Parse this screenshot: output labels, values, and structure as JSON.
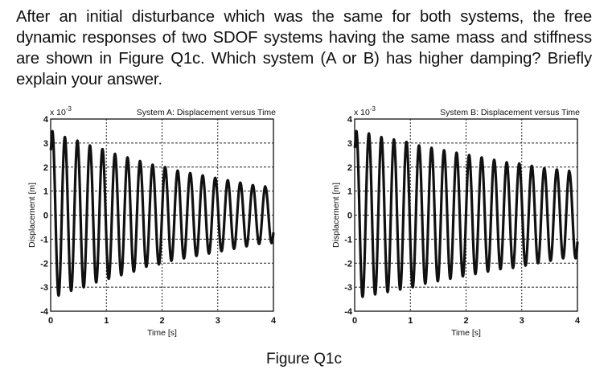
{
  "question": {
    "text": "After an initial disturbance which was the same for both systems, the free dynamic responses of two SDOF systems having the same mass and stiffness are shown in Figure Q1c. Which system (A or B) has higher damping? Briefly explain your answer."
  },
  "caption": "Figure Q1c",
  "chart_data": [
    {
      "type": "line",
      "id": "A",
      "title": "System A: Displacement versus Time",
      "xlabel": "Time [s]",
      "ylabel": "Displacement [m]",
      "y_scale_label": "x 10",
      "y_scale_exponent": "-3",
      "xlim": [
        0,
        4
      ],
      "ylim": [
        -4,
        4
      ],
      "xticks": [
        "0",
        "1",
        "2",
        "3",
        "4"
      ],
      "yticks": [
        "4",
        "3",
        "2",
        "1",
        "0",
        "-1",
        "-2",
        "-3",
        "-4"
      ],
      "grid": "dotted",
      "signal": {
        "initial_value": 2.7,
        "first_peak": 3.5,
        "final_peak": 1.2,
        "period_s": 0.225,
        "phase_s": 0.03
      },
      "peaks": [
        3.5,
        3.25,
        3.1,
        2.9,
        2.75,
        2.55,
        2.4,
        2.25,
        2.1,
        2.0,
        1.85,
        1.75,
        1.65,
        1.55,
        1.45,
        1.35,
        1.25,
        1.2
      ],
      "troughs": [
        -3.35,
        -3.15,
        -3.0,
        -2.8,
        -2.65,
        -2.5,
        -2.35,
        -2.15,
        -2.05,
        -1.9,
        -1.8,
        -1.7,
        -1.6,
        -1.5,
        -1.4,
        -1.3,
        -1.2
      ]
    },
    {
      "type": "line",
      "id": "B",
      "title": "System B: Displacement versus Time",
      "xlabel": "Time [s]",
      "ylabel": "Displacement [m]",
      "y_scale_label": "x 10",
      "y_scale_exponent": "-3",
      "xlim": [
        0,
        4
      ],
      "ylim": [
        -4,
        4
      ],
      "xticks": [
        "0",
        "1",
        "2",
        "3",
        "4"
      ],
      "yticks": [
        "4",
        "3",
        "2",
        "1",
        "0",
        "-1",
        "-2",
        "-3",
        "-4"
      ],
      "grid": "dotted",
      "signal": {
        "initial_value": 2.8,
        "first_peak": 3.5,
        "final_peak": 1.85,
        "period_s": 0.225,
        "phase_s": 0.03
      },
      "peaks": [
        3.5,
        3.4,
        3.25,
        3.15,
        3.05,
        2.9,
        2.8,
        2.7,
        2.6,
        2.5,
        2.4,
        2.3,
        2.2,
        2.15,
        2.05,
        1.95,
        1.9,
        1.85
      ],
      "troughs": [
        -3.4,
        -3.3,
        -3.2,
        -3.1,
        -3.0,
        -2.85,
        -2.75,
        -2.65,
        -2.55,
        -2.45,
        -2.35,
        -2.25,
        -2.2,
        -2.1,
        -2.0,
        -1.9,
        -1.8
      ]
    }
  ]
}
